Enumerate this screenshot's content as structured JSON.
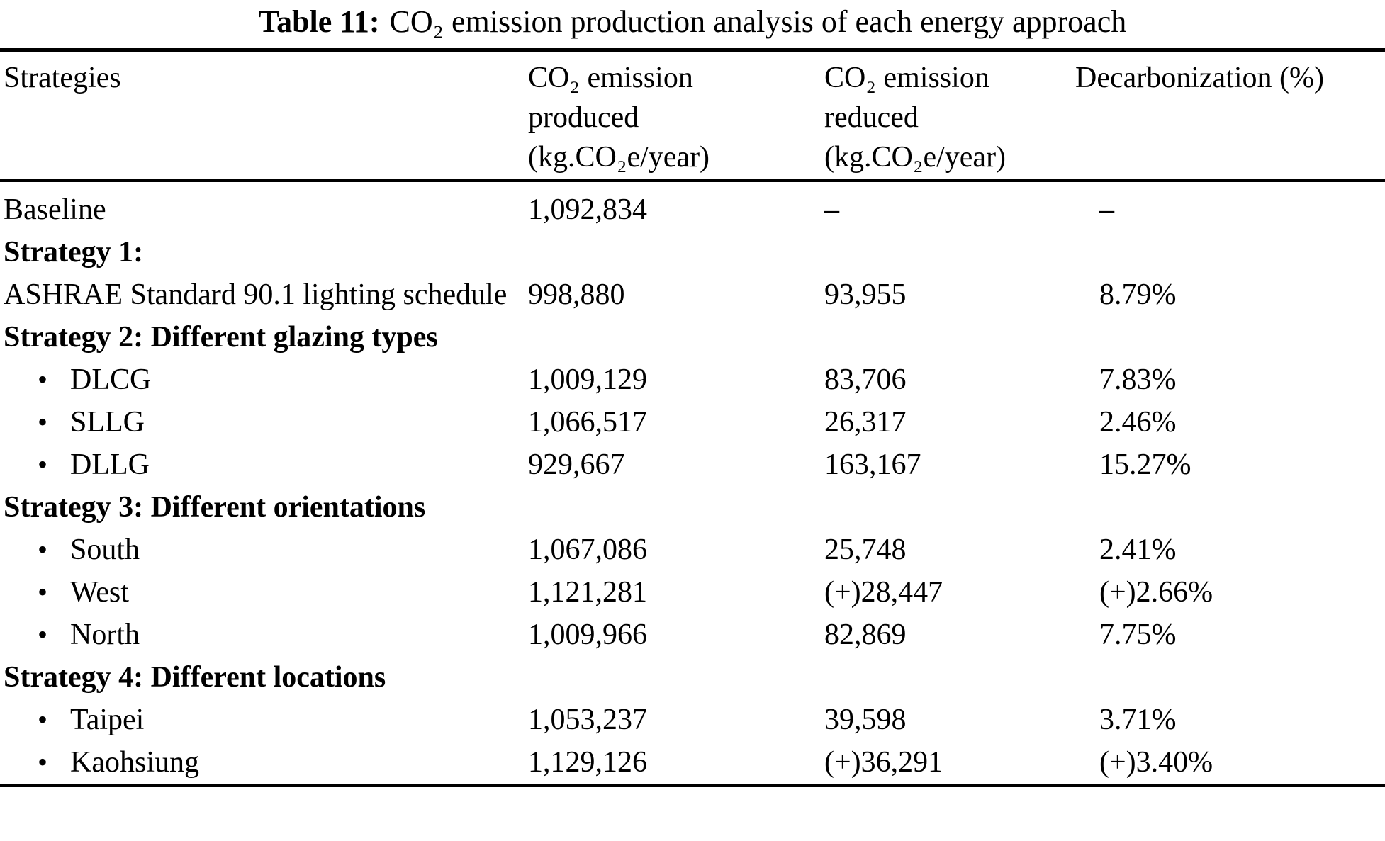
{
  "title": {
    "prefix": "Table 11:",
    "rest": "CO₂ emission production analysis of each energy approach"
  },
  "table": {
    "headers": [
      "Strategies",
      "CO₂ emission\nproduced\n(kg.CO₂e/year)",
      "CO₂ emission\nreduced\n(kg.CO₂e/year)",
      "Decarbonization (%)"
    ],
    "bullet_glyph": "•",
    "rows": [
      {
        "type": "data",
        "label": "Baseline",
        "produced": "1,092,834",
        "reduced": "–",
        "decarb": "–"
      },
      {
        "type": "section",
        "label": "Strategy 1:"
      },
      {
        "type": "data",
        "label": "ASHRAE Standard 90.1 lighting schedule",
        "produced": "998,880",
        "reduced": "93,955",
        "decarb": "8.79%"
      },
      {
        "type": "section",
        "label": "Strategy 2: Different glazing types"
      },
      {
        "type": "bullet",
        "label": "DLCG",
        "produced": "1,009,129",
        "reduced": "83,706",
        "decarb": "7.83%"
      },
      {
        "type": "bullet",
        "label": "SLLG",
        "produced": "1,066,517",
        "reduced": "26,317",
        "decarb": "2.46%"
      },
      {
        "type": "bullet",
        "label": "DLLG",
        "produced": "929,667",
        "reduced": "163,167",
        "decarb": "15.27%"
      },
      {
        "type": "section",
        "label": "Strategy 3: Different orientations"
      },
      {
        "type": "bullet",
        "label": "South",
        "produced": "1,067,086",
        "reduced": "25,748",
        "decarb": "2.41%"
      },
      {
        "type": "bullet",
        "label": "West",
        "produced": "1,121,281",
        "reduced": "(+)28,447",
        "decarb": "(+)2.66%"
      },
      {
        "type": "bullet",
        "label": "North",
        "produced": "1,009,966",
        "reduced": "82,869",
        "decarb": "7.75%"
      },
      {
        "type": "section",
        "label": "Strategy 4: Different locations"
      },
      {
        "type": "bullet",
        "label": "Taipei",
        "produced": "1,053,237",
        "reduced": "39,598",
        "decarb": "3.71%"
      },
      {
        "type": "bullet",
        "label": "Kaohsiung",
        "produced": "1,129,126",
        "reduced": "(+)36,291",
        "decarb": "(+)3.40%"
      }
    ]
  },
  "colors": {
    "text": "#000000",
    "background": "#ffffff",
    "rule": "#000000"
  }
}
